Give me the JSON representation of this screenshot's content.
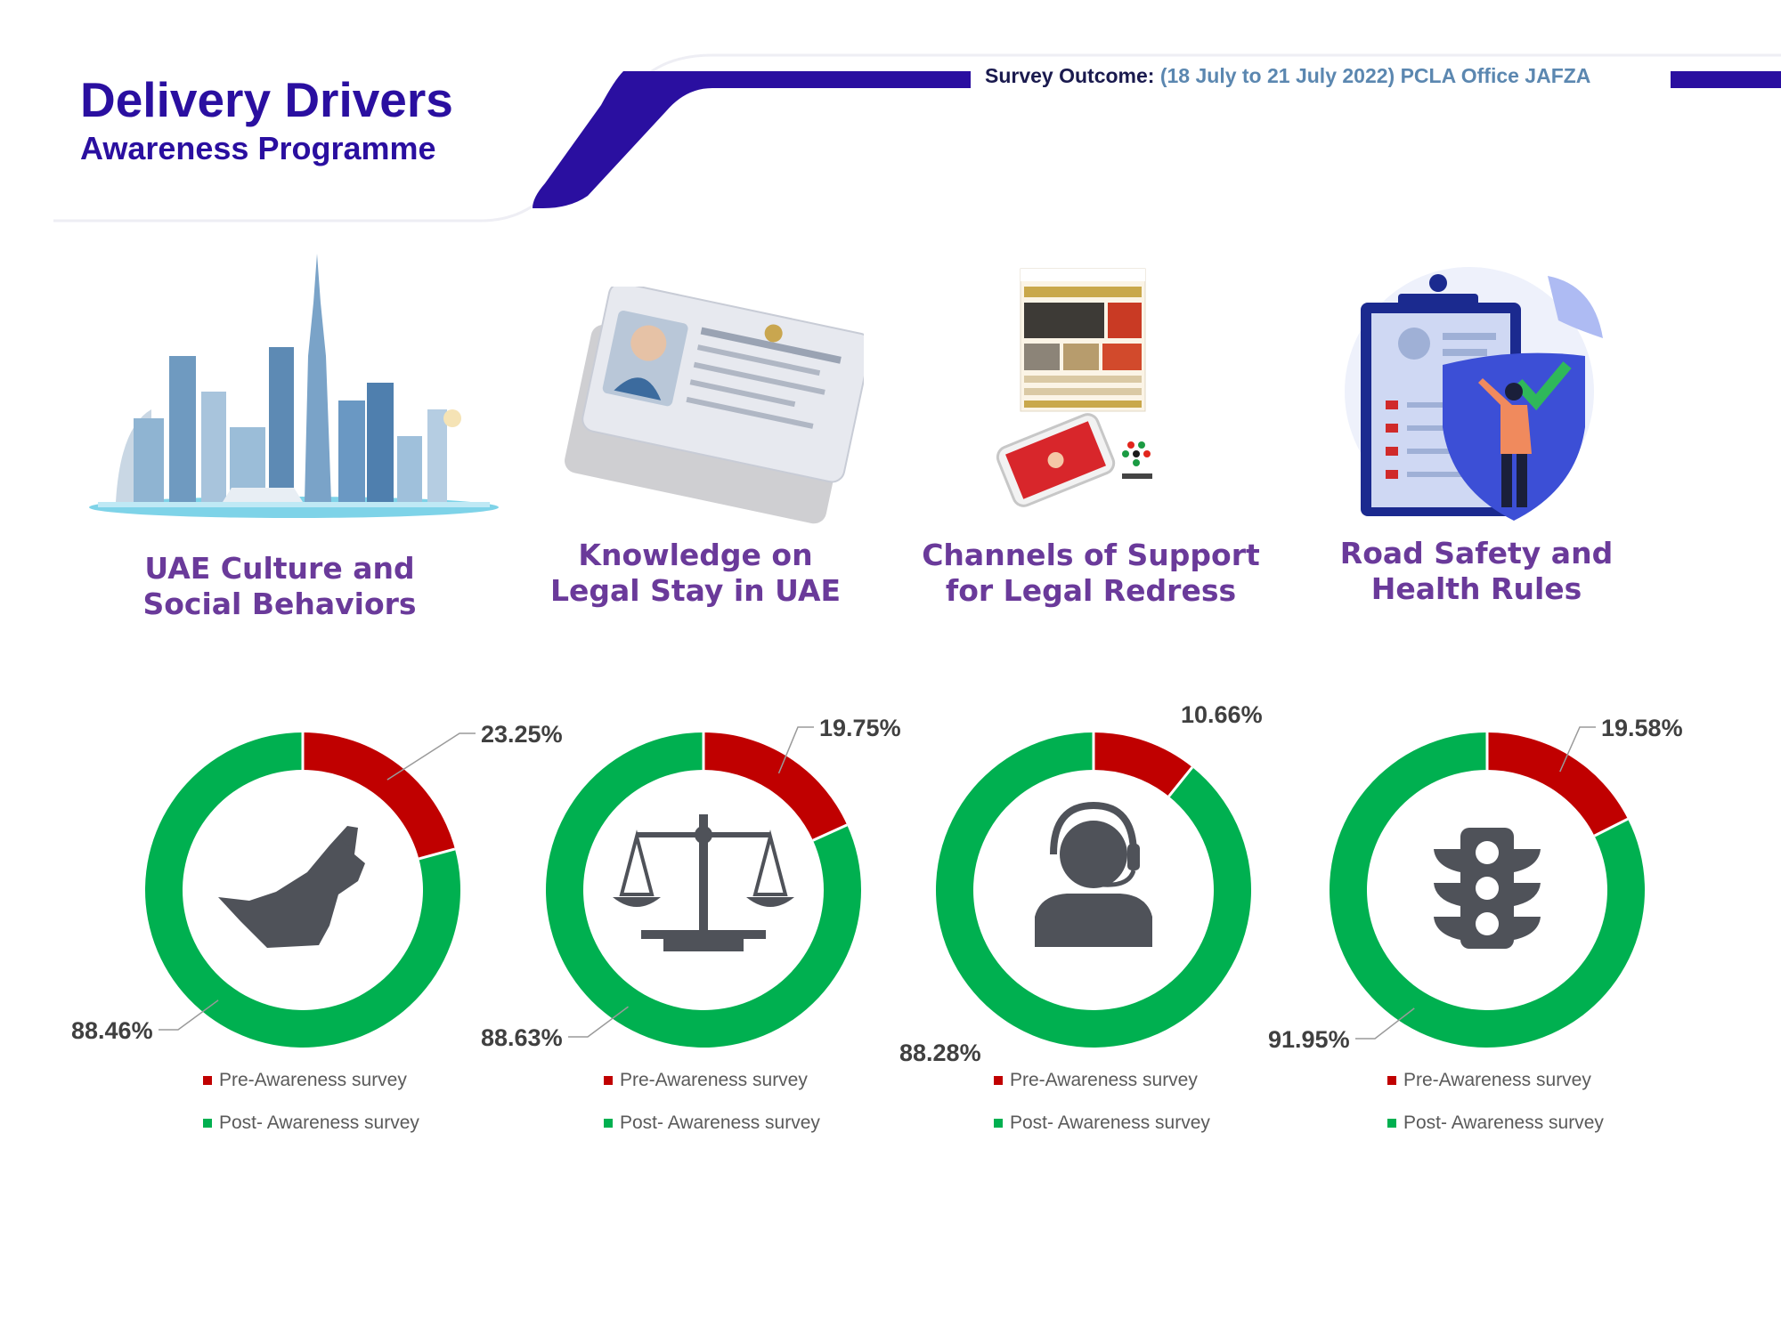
{
  "header": {
    "title": "Delivery Drivers",
    "subtitle": "Awareness Programme",
    "survey_label": "Survey Outcome:",
    "survey_value": "(18 July to 21 July 2022) PCLA Office JAFZA",
    "accent_color": "#2a0fa0"
  },
  "cards": [
    {
      "title_lines": [
        "UAE Culture and",
        "Social Behaviors"
      ],
      "illustration": "dubai-skyline-icon"
    },
    {
      "title_lines": [
        "Knowledge on",
        "Legal Stay in UAE"
      ],
      "illustration": "emirates-id-card-icon"
    },
    {
      "title_lines": [
        "Channels of Support",
        "for Legal Redress"
      ],
      "illustration": "tasheel-website-app-icon"
    },
    {
      "title_lines": [
        "Road Safety and",
        "Health Rules"
      ],
      "illustration": "shield-checklist-icon"
    }
  ],
  "colors": {
    "pre": "#c00000",
    "post": "#00b050",
    "icon": "#4f5259"
  },
  "chart_data": [
    {
      "type": "pie",
      "style": "donut",
      "center_icon": "uae-map-icon",
      "series": [
        {
          "name": "Pre-Awareness survey",
          "value": 23.25,
          "label": "23.25%"
        },
        {
          "name": "Post- Awareness survey",
          "value": 88.46,
          "label": "88.46%"
        }
      ]
    },
    {
      "type": "pie",
      "style": "donut",
      "center_icon": "scales-of-justice-icon",
      "series": [
        {
          "name": "Pre-Awareness survey",
          "value": 19.75,
          "label": "19.75%"
        },
        {
          "name": "Post- Awareness survey",
          "value": 88.63,
          "label": "88.63%"
        }
      ]
    },
    {
      "type": "pie",
      "style": "donut",
      "center_icon": "support-agent-headset-icon",
      "series": [
        {
          "name": "Pre-Awareness survey",
          "value": 10.66,
          "label": "10.66%"
        },
        {
          "name": "Post- Awareness survey",
          "value": 88.28,
          "label": "88.28%"
        }
      ]
    },
    {
      "type": "pie",
      "style": "donut",
      "center_icon": "traffic-light-icon",
      "series": [
        {
          "name": "Pre-Awareness survey",
          "value": 19.58,
          "label": "19.58%"
        },
        {
          "name": "Post- Awareness survey",
          "value": 91.95,
          "label": "91.95%"
        }
      ]
    }
  ]
}
